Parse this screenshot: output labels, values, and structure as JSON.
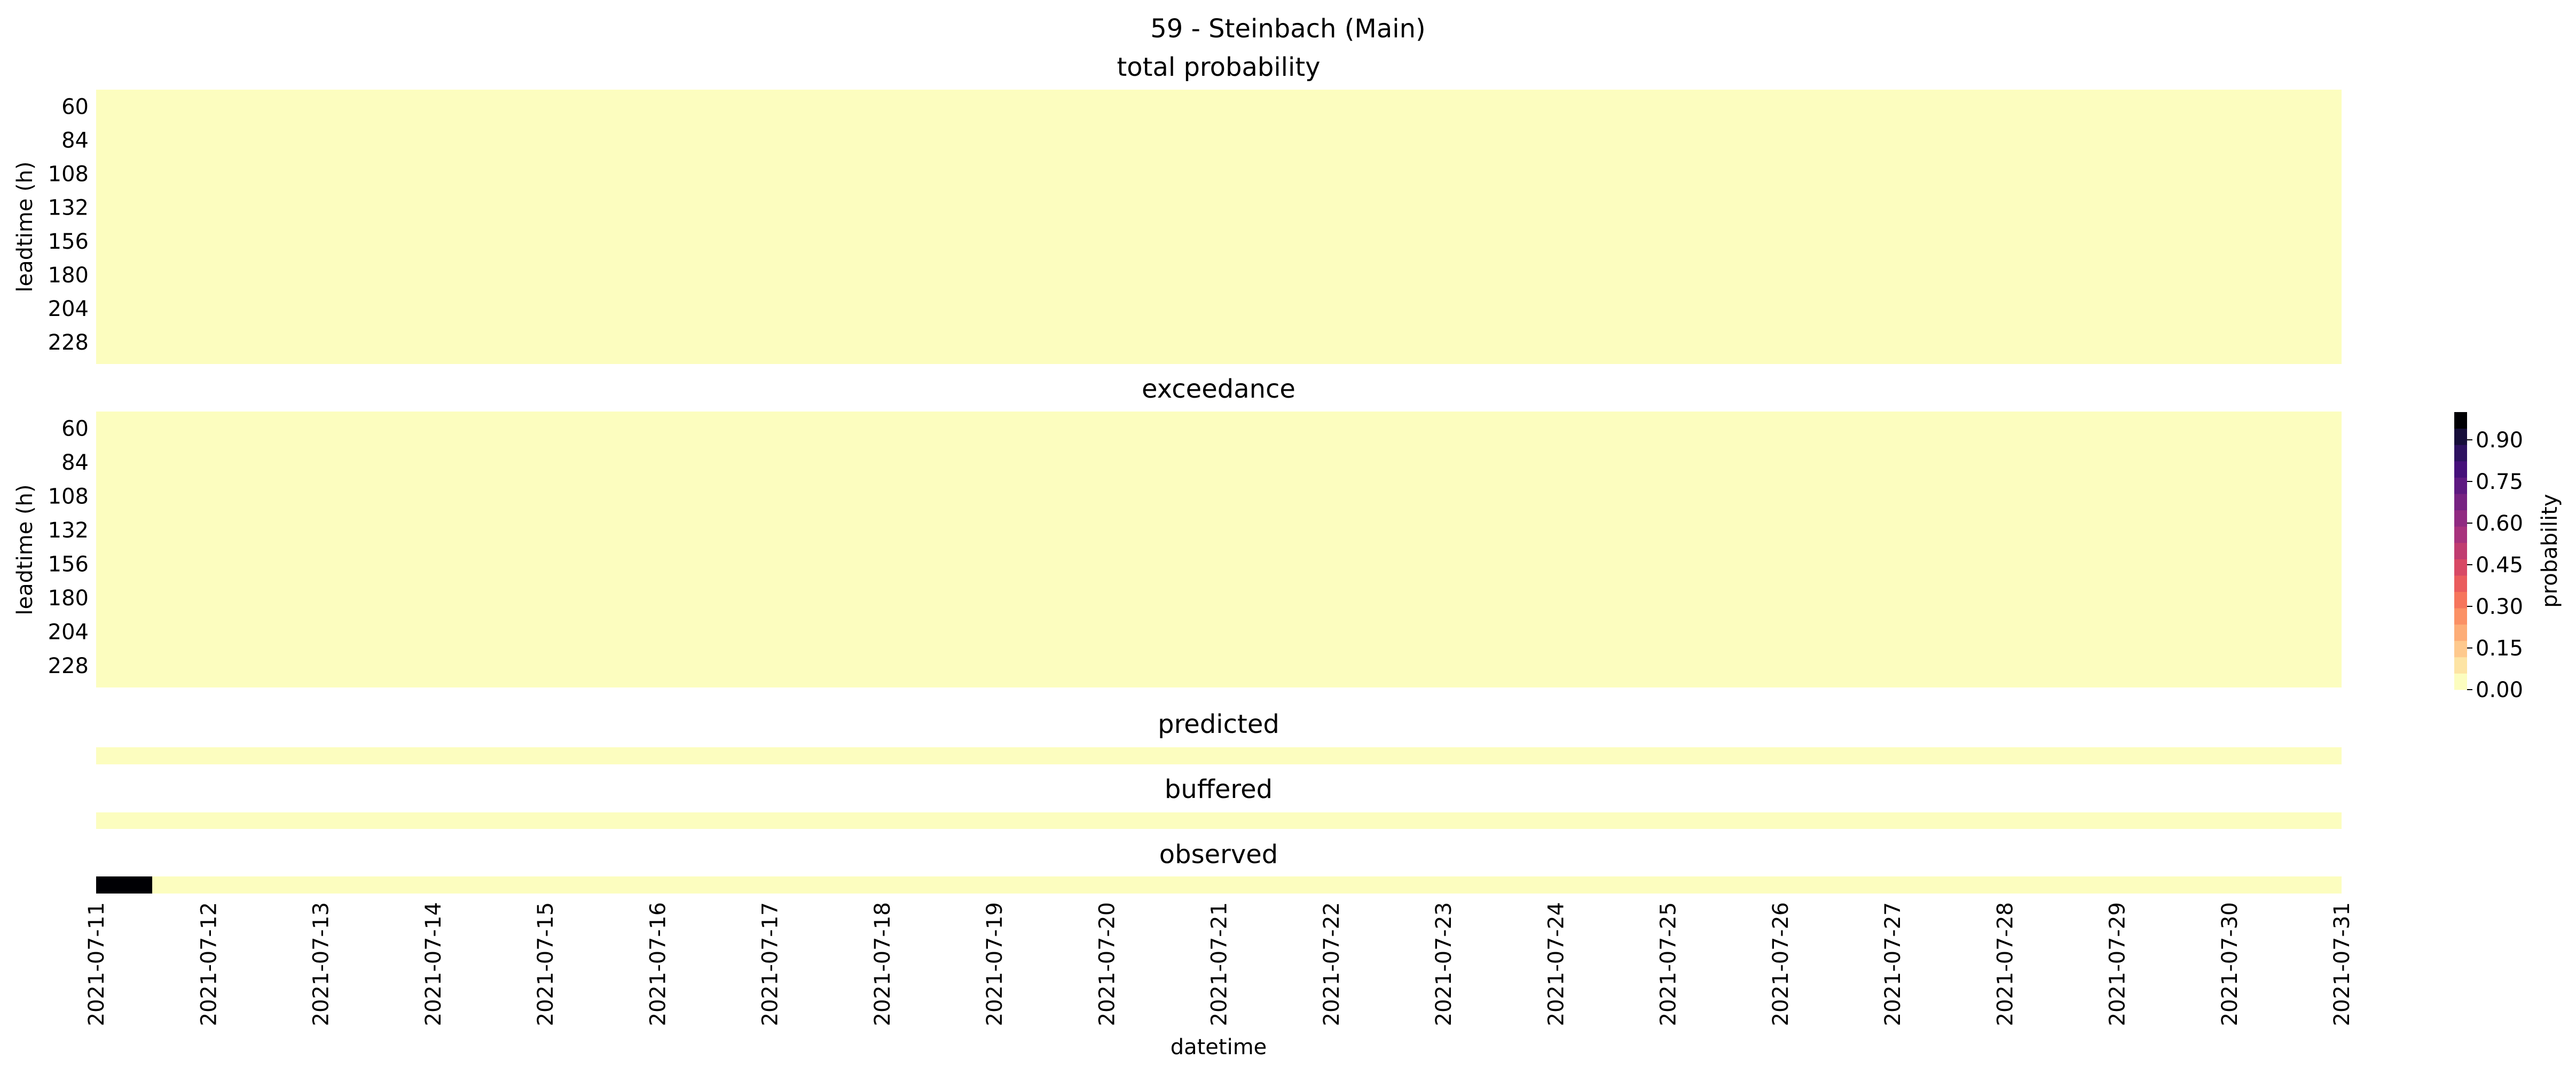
{
  "chart_data": {
    "type": "heatmap",
    "title": "59 - Steinbach (Main)",
    "xlabel": "datetime",
    "x_ticks": [
      "2021-07-11",
      "2021-07-12",
      "2021-07-13",
      "2021-07-14",
      "2021-07-15",
      "2021-07-16",
      "2021-07-17",
      "2021-07-18",
      "2021-07-19",
      "2021-07-20",
      "2021-07-21",
      "2021-07-22",
      "2021-07-23",
      "2021-07-24",
      "2021-07-25",
      "2021-07-26",
      "2021-07-27",
      "2021-07-28",
      "2021-07-29",
      "2021-07-30",
      "2021-07-31"
    ],
    "x_range": [
      "2021-07-11",
      "2021-07-31"
    ],
    "panels": [
      {
        "title": "total probability",
        "ylabel": "leadtime (h)",
        "y_ticks": [
          "60",
          "84",
          "108",
          "132",
          "156",
          "180",
          "204",
          "228"
        ],
        "cells": [
          {
            "x_start": "2021-07-11",
            "x_end": "2021-07-31",
            "value": 0.0
          }
        ]
      },
      {
        "title": "exceedance",
        "ylabel": "leadtime (h)",
        "y_ticks": [
          "60",
          "84",
          "108",
          "132",
          "156",
          "180",
          "204",
          "228"
        ],
        "cells": [
          {
            "x_start": "2021-07-11",
            "x_end": "2021-07-31",
            "value": 0.0
          }
        ]
      },
      {
        "title": "predicted",
        "ylabel": "",
        "y_ticks": [],
        "cells": [
          {
            "x_start": "2021-07-11",
            "x_end": "2021-07-31",
            "value": 0.0
          }
        ]
      },
      {
        "title": "buffered",
        "ylabel": "",
        "y_ticks": [],
        "cells": [
          {
            "x_start": "2021-07-11",
            "x_end": "2021-07-31",
            "value": 0.0
          }
        ]
      },
      {
        "title": "observed",
        "ylabel": "",
        "y_ticks": [],
        "cells": [
          {
            "x_start": "2021-07-11",
            "x_end": "2021-07-11 12:00",
            "value": 1.0
          },
          {
            "x_start": "2021-07-11 12:00",
            "x_end": "2021-07-31",
            "value": 0.0
          }
        ]
      }
    ],
    "colorbar": {
      "label": "probability",
      "range": [
        0,
        1
      ],
      "ticks": [
        "0.00",
        "0.15",
        "0.30",
        "0.45",
        "0.60",
        "0.75",
        "0.90"
      ],
      "colormap": "magma_r",
      "levels": [
        "#fcfdbf",
        "#fde4a4",
        "#fec98d",
        "#fdad77",
        "#fb9165",
        "#f6755c",
        "#ea5c5d",
        "#d84965",
        "#c03c70",
        "#a8327d",
        "#902a81",
        "#772282",
        "#5e1981",
        "#45107a",
        "#2d1160",
        "#160e3a",
        "#000004"
      ]
    }
  }
}
